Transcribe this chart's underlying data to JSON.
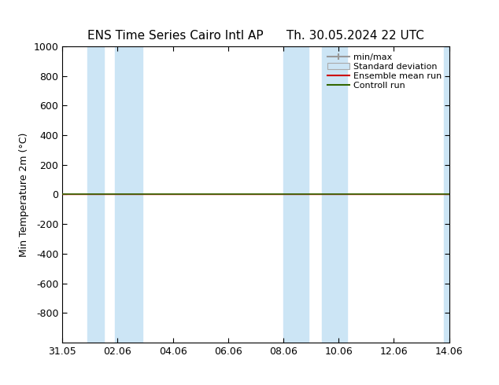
{
  "title_left": "ENS Time Series Cairo Intl AP",
  "title_right": "Th. 30.05.2024 22 UTC",
  "ylabel": "Min Temperature 2m (°C)",
  "ylim_top": -1000,
  "ylim_bottom": 1000,
  "yticks": [
    -800,
    -600,
    -400,
    -200,
    0,
    200,
    400,
    600,
    800,
    1000
  ],
  "xtick_labels": [
    "31.05",
    "02.06",
    "04.06",
    "06.06",
    "08.06",
    "10.06",
    "12.06",
    "14.06"
  ],
  "xtick_positions": [
    0,
    2,
    4,
    6,
    8,
    10,
    12,
    14
  ],
  "shaded_bands": [
    {
      "x_start": 0.9,
      "x_end": 1.5
    },
    {
      "x_start": 1.9,
      "x_end": 2.9
    },
    {
      "x_start": 8.0,
      "x_end": 8.9
    },
    {
      "x_start": 9.4,
      "x_end": 10.3
    },
    {
      "x_start": 13.8,
      "x_end": 14.2
    }
  ],
  "band_color": "#cce5f5",
  "line_y": 0,
  "ensemble_mean_color": "#cc0000",
  "control_run_color": "#336600",
  "watermark_color": "#3333aa",
  "background_color": "#ffffff",
  "plot_bg_color": "#ffffff",
  "legend_items": [
    "min/max",
    "Standard deviation",
    "Ensemble mean run",
    "Controll run"
  ],
  "legend_minmax_color": "#999999",
  "legend_std_color": "#cce5f5",
  "legend_std_edge": "#aaaaaa",
  "ensemble_mean_color_leg": "#cc0000",
  "control_run_color_leg": "#336600",
  "title_fontsize": 11,
  "axis_fontsize": 9,
  "tick_fontsize": 9,
  "legend_fontsize": 8
}
